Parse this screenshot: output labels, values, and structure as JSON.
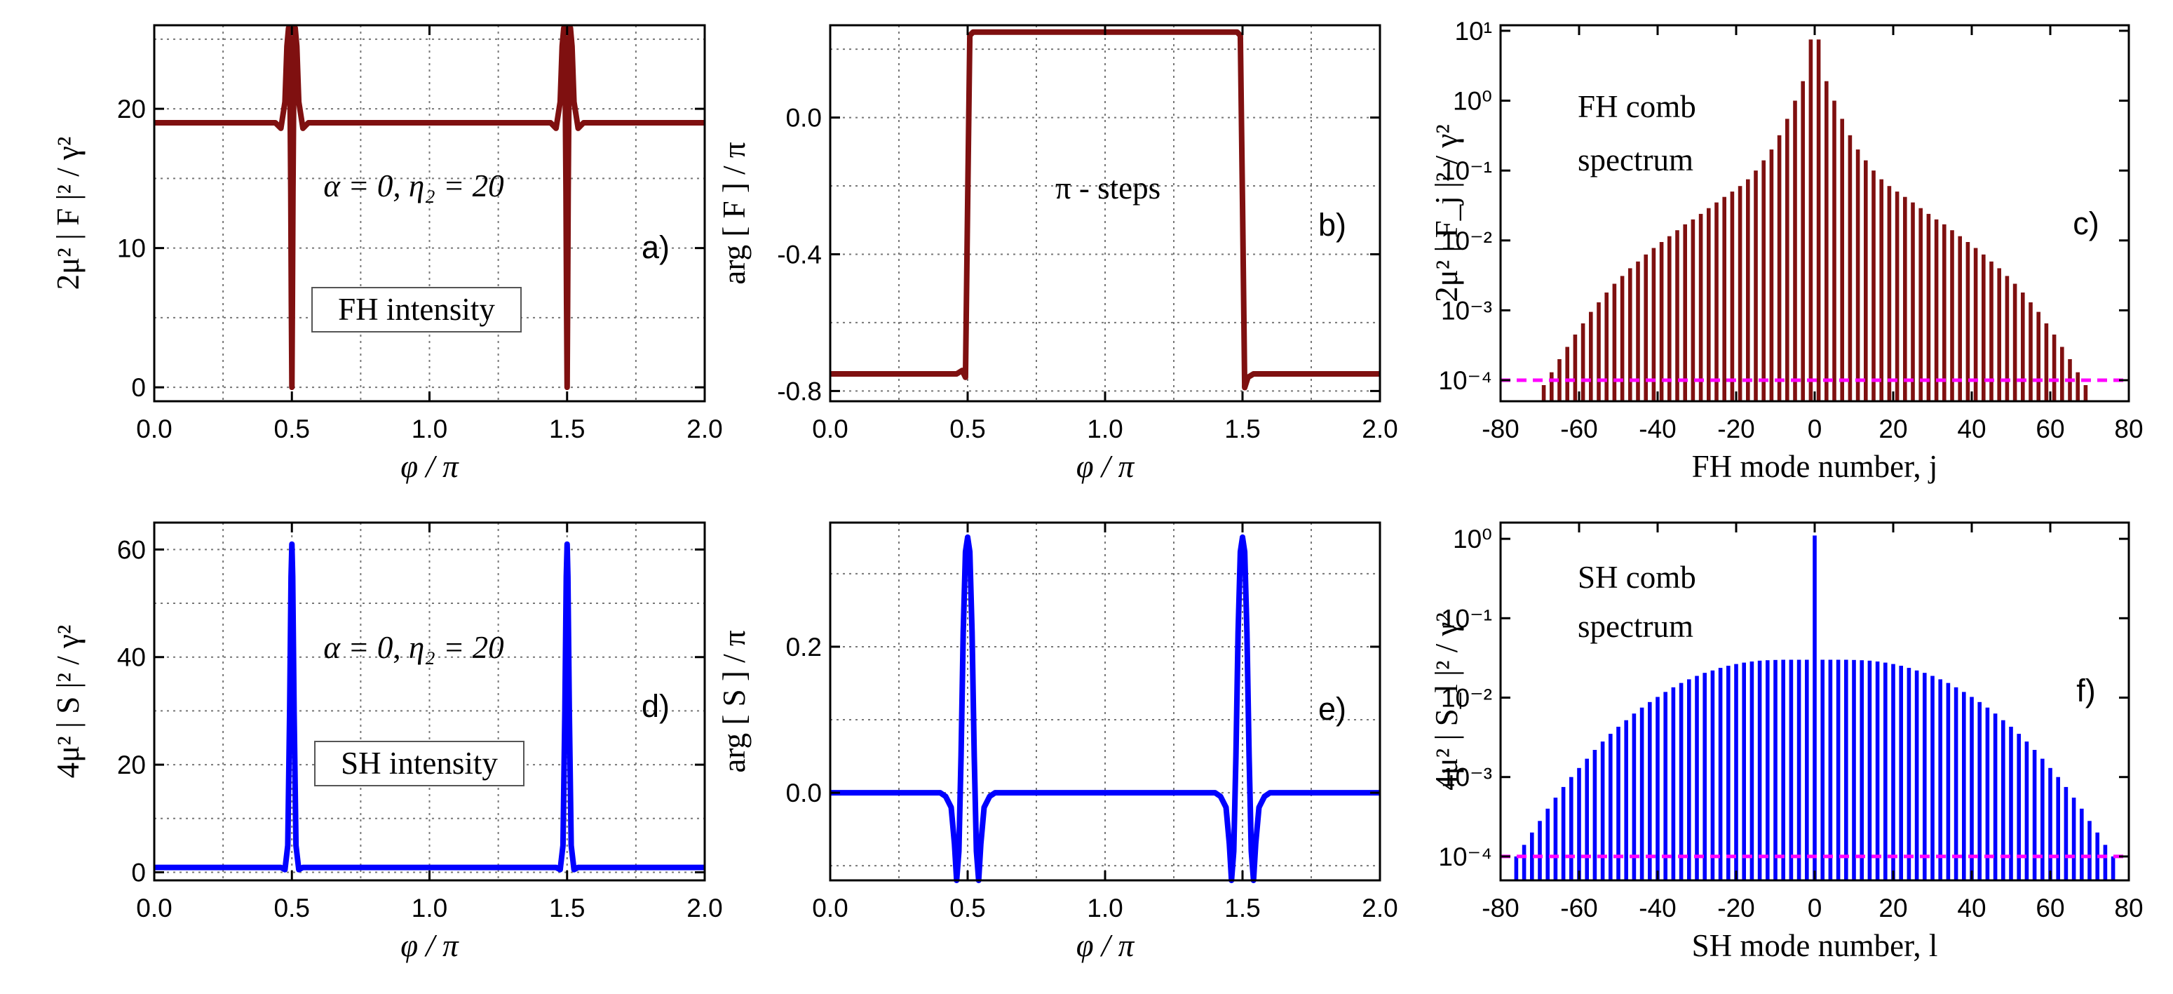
{
  "chart_data": [
    {
      "id": "a",
      "type": "line",
      "panel_label": "a)",
      "xlabel": "φ / π",
      "ylabel": "2μ² | F |² / γ²",
      "xlim": [
        0.0,
        2.0
      ],
      "ylim": [
        -1,
        26
      ],
      "xticks": [
        0.0,
        0.5,
        1.0,
        1.5,
        2.0
      ],
      "xtick_labels": [
        "0.0",
        "0.5",
        "1.0",
        "1.5",
        "2.0"
      ],
      "yticks": [
        0,
        10,
        20
      ],
      "ytick_labels": [
        "0",
        "10",
        "20"
      ],
      "grid": true,
      "color": "#7f1010",
      "annotations": [
        "α = 0, η₂ = 20"
      ],
      "boxed_label": "FH intensity",
      "series": [
        {
          "x": [
            0.0,
            0.44,
            0.46,
            0.475,
            0.482,
            0.488,
            0.492,
            0.496,
            0.498,
            0.5,
            0.502,
            0.504,
            0.508,
            0.512,
            0.518,
            0.525,
            0.54,
            0.56,
            1.44,
            1.46,
            1.475,
            1.482,
            1.488,
            1.492,
            1.496,
            1.498,
            1.5,
            1.502,
            1.504,
            1.508,
            1.512,
            1.518,
            1.525,
            1.54,
            1.56,
            2.0
          ],
          "y": [
            19,
            19,
            18.6,
            20.5,
            24.5,
            25.8,
            24.5,
            14,
            6,
            0,
            6,
            14,
            24.5,
            25.8,
            24.5,
            20.5,
            18.6,
            19,
            19,
            18.6,
            20.5,
            24.5,
            25.8,
            24.5,
            14,
            6,
            0,
            6,
            14,
            24.5,
            25.8,
            24.5,
            20.5,
            18.6,
            19,
            19
          ]
        }
      ]
    },
    {
      "id": "b",
      "type": "line",
      "panel_label": "b)",
      "xlabel": "φ / π",
      "ylabel": "arg [ F ] / π",
      "xlim": [
        0.0,
        2.0
      ],
      "ylim": [
        -0.83,
        0.27
      ],
      "xticks": [
        0.0,
        0.5,
        1.0,
        1.5,
        2.0
      ],
      "xtick_labels": [
        "0.0",
        "0.5",
        "1.0",
        "1.5",
        "2.0"
      ],
      "yticks": [
        -0.8,
        -0.4,
        0.0
      ],
      "ytick_labels": [
        "-0.8",
        "-0.4",
        "0.0"
      ],
      "grid": true,
      "color": "#7f1010",
      "annotations": [
        "π - steps"
      ],
      "series": [
        {
          "x": [
            0.0,
            0.46,
            0.48,
            0.492,
            0.5,
            0.508,
            0.52,
            0.54,
            1.46,
            1.48,
            1.492,
            1.5,
            1.508,
            1.52,
            1.54,
            2.0
          ],
          "y": [
            -0.75,
            -0.75,
            -0.74,
            -0.76,
            -0.25,
            0.24,
            0.25,
            0.25,
            0.25,
            0.25,
            0.24,
            -0.25,
            -0.79,
            -0.76,
            -0.75,
            -0.75
          ]
        }
      ]
    },
    {
      "id": "c",
      "type": "bar",
      "panel_label": "c)",
      "xlabel": "FH mode number, j",
      "ylabel": "2μ² | F_j |² / γ²",
      "log_y": true,
      "xlim": [
        -80,
        80
      ],
      "ylim": [
        5e-05,
        12
      ],
      "xticks": [
        -80,
        -60,
        -40,
        -20,
        0,
        20,
        40,
        60,
        80
      ],
      "xtick_labels": [
        "-80",
        "-60",
        "-40",
        "-20",
        "0",
        "20",
        "40",
        "60",
        "80"
      ],
      "yticks": [
        0.0001,
        0.001,
        0.01,
        0.1,
        1,
        10
      ],
      "ytick_labels": [
        "10⁻⁴",
        "10⁻³",
        "10⁻²",
        "10⁻¹",
        "10⁰",
        "10¹"
      ],
      "grid": false,
      "color": "#7f1010",
      "threshold": 0.0001,
      "threshold_color": "#ff00ff",
      "annotations": [
        "FH comb",
        "spectrum"
      ],
      "bars": {
        "x": [
          -69,
          -67,
          -65,
          -63,
          -61,
          -59,
          -57,
          -55,
          -53,
          -51,
          -49,
          -47,
          -45,
          -43,
          -41,
          -39,
          -37,
          -35,
          -33,
          -31,
          -29,
          -27,
          -25,
          -23,
          -21,
          -19,
          -17,
          -15,
          -13,
          -11,
          -9,
          -7,
          -5,
          -3,
          -1,
          1,
          3,
          5,
          7,
          9,
          11,
          13,
          15,
          17,
          19,
          21,
          23,
          25,
          27,
          29,
          31,
          33,
          35,
          37,
          39,
          41,
          43,
          45,
          47,
          49,
          51,
          53,
          55,
          57,
          59,
          61,
          63,
          65,
          67,
          69
        ],
        "y": [
          8.5e-05,
          0.00013,
          0.0002,
          0.0003,
          0.00045,
          0.00065,
          0.00095,
          0.0013,
          0.0018,
          0.0024,
          0.0031,
          0.004,
          0.005,
          0.0063,
          0.0078,
          0.0095,
          0.0115,
          0.014,
          0.017,
          0.02,
          0.024,
          0.029,
          0.035,
          0.042,
          0.05,
          0.06,
          0.075,
          0.1,
          0.14,
          0.2,
          0.32,
          0.55,
          1.0,
          1.9,
          7.5,
          7.5,
          1.9,
          1.0,
          0.55,
          0.32,
          0.2,
          0.14,
          0.1,
          0.075,
          0.06,
          0.05,
          0.042,
          0.035,
          0.029,
          0.024,
          0.02,
          0.017,
          0.014,
          0.0115,
          0.0095,
          0.0078,
          0.0063,
          0.005,
          0.004,
          0.0031,
          0.0024,
          0.0018,
          0.0013,
          0.00095,
          0.00065,
          0.00045,
          0.0003,
          0.0002,
          0.00013,
          8.5e-05
        ]
      }
    },
    {
      "id": "d",
      "type": "line",
      "panel_label": "d)",
      "xlabel": "φ / π",
      "ylabel": "4μ² | S |² / γ²",
      "xlim": [
        0.0,
        2.0
      ],
      "ylim": [
        -1.5,
        65
      ],
      "xticks": [
        0.0,
        0.5,
        1.0,
        1.5,
        2.0
      ],
      "xtick_labels": [
        "0.0",
        "0.5",
        "1.0",
        "1.5",
        "2.0"
      ],
      "yticks": [
        0,
        20,
        40,
        60
      ],
      "ytick_labels": [
        "0",
        "20",
        "40",
        "60"
      ],
      "grid": true,
      "color": "#0000ff",
      "annotations": [
        "α = 0, η₂ = 20"
      ],
      "boxed_label": "SH intensity",
      "series": [
        {
          "x": [
            0.0,
            0.46,
            0.475,
            0.485,
            0.492,
            0.497,
            0.5,
            0.503,
            0.508,
            0.515,
            0.525,
            0.54,
            1.46,
            1.475,
            1.485,
            1.492,
            1.497,
            1.5,
            1.503,
            1.508,
            1.515,
            1.525,
            1.54,
            2.0
          ],
          "y": [
            0.9,
            0.9,
            0.5,
            5,
            30,
            55,
            61,
            55,
            30,
            5,
            0.5,
            0.9,
            0.9,
            0.5,
            5,
            30,
            55,
            61,
            55,
            30,
            5,
            0.5,
            0.9,
            0.9
          ]
        }
      ]
    },
    {
      "id": "e",
      "type": "line",
      "panel_label": "e)",
      "xlabel": "φ / π",
      "ylabel": "arg [ S ] / π",
      "xlim": [
        0.0,
        2.0
      ],
      "ylim": [
        -0.12,
        0.37
      ],
      "xticks": [
        0.0,
        0.5,
        1.0,
        1.5,
        2.0
      ],
      "xtick_labels": [
        "0.0",
        "0.5",
        "1.0",
        "1.5",
        "2.0"
      ],
      "yticks": [
        0.0,
        0.2
      ],
      "ytick_labels": [
        "0.0",
        "0.2"
      ],
      "grid": true,
      "color": "#0000ff",
      "series": [
        {
          "x": [
            0.0,
            0.4,
            0.42,
            0.44,
            0.452,
            0.46,
            0.468,
            0.476,
            0.484,
            0.492,
            0.5,
            0.508,
            0.516,
            0.524,
            0.532,
            0.54,
            0.548,
            0.56,
            0.58,
            0.6,
            1.4,
            1.42,
            1.44,
            1.452,
            1.46,
            1.468,
            1.476,
            1.484,
            1.492,
            1.5,
            1.508,
            1.516,
            1.524,
            1.532,
            1.54,
            1.548,
            1.56,
            1.58,
            1.6,
            2.0
          ],
          "y": [
            0,
            0,
            -0.005,
            -0.02,
            -0.07,
            -0.12,
            -0.08,
            0.05,
            0.22,
            0.33,
            0.35,
            0.33,
            0.22,
            0.05,
            -0.08,
            -0.12,
            -0.07,
            -0.02,
            -0.005,
            0,
            0,
            -0.005,
            -0.02,
            -0.07,
            -0.12,
            -0.08,
            0.05,
            0.22,
            0.33,
            0.35,
            0.33,
            0.22,
            0.05,
            -0.08,
            -0.12,
            -0.07,
            -0.02,
            -0.005,
            0,
            0
          ]
        }
      ]
    },
    {
      "id": "f",
      "type": "bar",
      "panel_label": "f)",
      "xlabel": "SH mode number, l",
      "ylabel": "4μ² | S_l |² / γ²",
      "log_y": true,
      "xlim": [
        -80,
        80
      ],
      "ylim": [
        5e-05,
        1.6
      ],
      "xticks": [
        -80,
        -60,
        -40,
        -20,
        0,
        20,
        40,
        60,
        80
      ],
      "xtick_labels": [
        "-80",
        "-60",
        "-40",
        "-20",
        "0",
        "20",
        "40",
        "60",
        "80"
      ],
      "yticks": [
        0.0001,
        0.001,
        0.01,
        0.1,
        1
      ],
      "ytick_labels": [
        "10⁻⁴",
        "10⁻³",
        "10⁻²",
        "10⁻¹",
        "10⁰"
      ],
      "grid": false,
      "color": "#0000ff",
      "threshold": 0.0001,
      "threshold_color": "#ff00ff",
      "annotations": [
        "SH comb",
        "spectrum"
      ],
      "bars": {
        "x": [
          -76,
          -74,
          -72,
          -70,
          -68,
          -66,
          -64,
          -62,
          -60,
          -58,
          -56,
          -54,
          -52,
          -50,
          -48,
          -46,
          -44,
          -42,
          -40,
          -38,
          -36,
          -34,
          -32,
          -30,
          -28,
          -26,
          -24,
          -22,
          -20,
          -18,
          -16,
          -14,
          -12,
          -10,
          -8,
          -6,
          -4,
          -2,
          0,
          2,
          4,
          6,
          8,
          10,
          12,
          14,
          16,
          18,
          20,
          22,
          24,
          26,
          28,
          30,
          32,
          34,
          36,
          38,
          40,
          42,
          44,
          46,
          48,
          50,
          52,
          54,
          56,
          58,
          60,
          62,
          64,
          66,
          68,
          70,
          72,
          74,
          76
        ],
        "y": [
          0.0001,
          0.00014,
          0.0002,
          0.00028,
          0.0004,
          0.00055,
          0.00075,
          0.001,
          0.0013,
          0.0017,
          0.0022,
          0.0028,
          0.0035,
          0.0043,
          0.0052,
          0.0063,
          0.0075,
          0.0088,
          0.0102,
          0.0118,
          0.0135,
          0.0153,
          0.017,
          0.0188,
          0.0205,
          0.022,
          0.0237,
          0.0252,
          0.0265,
          0.0276,
          0.0285,
          0.0292,
          0.0296,
          0.0298,
          0.03,
          0.03,
          0.03,
          0.03,
          1.1,
          0.03,
          0.03,
          0.03,
          0.03,
          0.0298,
          0.0296,
          0.0292,
          0.0285,
          0.0276,
          0.0265,
          0.0252,
          0.0237,
          0.022,
          0.0205,
          0.0188,
          0.017,
          0.0153,
          0.0135,
          0.0118,
          0.0102,
          0.0088,
          0.0075,
          0.0063,
          0.0052,
          0.0043,
          0.0035,
          0.0028,
          0.0022,
          0.0017,
          0.0013,
          0.001,
          0.00075,
          0.00055,
          0.0004,
          0.00028,
          0.0002,
          0.00014,
          0.0001
        ]
      }
    }
  ]
}
